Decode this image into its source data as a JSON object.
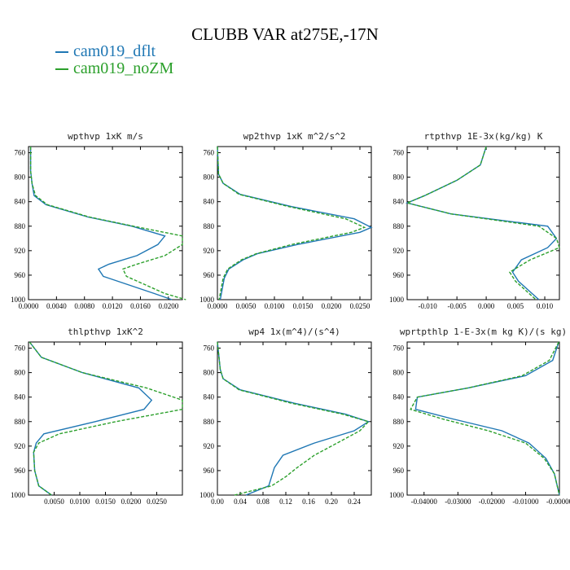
{
  "page": {
    "title": "CLUBB VAR at275E,-17N",
    "legend": [
      {
        "label": "cam019_dflt",
        "color": "#1f77b4"
      },
      {
        "label": "cam019_noZM",
        "color": "#2ca02c"
      }
    ]
  },
  "chart_data": [
    {
      "type": "line",
      "title": "wpthvp  1xK m/s",
      "xlim": [
        0,
        0.022
      ],
      "ylim": [
        1000,
        750
      ],
      "xticks": [
        0,
        0.004,
        0.008,
        0.012,
        0.016,
        0.02
      ],
      "xtick_labels": [
        "0.0000",
        "0.0040",
        "0.0080",
        "0.0120",
        "0.0160",
        "0.0200"
      ],
      "yticks": [
        760,
        800,
        840,
        880,
        920,
        960,
        1000
      ],
      "ytick_labels": [
        "760",
        "800",
        "840",
        "880",
        "920",
        "960",
        "1000"
      ],
      "series": [
        {
          "name": "cam019_dflt",
          "x": [
            0.0003,
            0.0003,
            0.0005,
            0.0008,
            0.0025,
            0.0085,
            0.0148,
            0.0195,
            0.0185,
            0.0155,
            0.0115,
            0.01,
            0.0107,
            0.018,
            0.0205
          ],
          "y": [
            750,
            790,
            810,
            830,
            845,
            865,
            880,
            896,
            910,
            928,
            942,
            950,
            962,
            990,
            1000
          ]
        },
        {
          "name": "cam019_noZM",
          "x": [
            0.0003,
            0.0003,
            0.0005,
            0.001,
            0.0027,
            0.0087,
            0.015,
            0.022,
            0.022,
            0.0195,
            0.0155,
            0.0135,
            0.014,
            0.0195,
            0.0225
          ],
          "y": [
            750,
            790,
            810,
            830,
            845,
            865,
            880,
            896,
            910,
            928,
            942,
            950,
            962,
            990,
            1000
          ]
        }
      ]
    },
    {
      "type": "line",
      "title": "wp2thvp  1xK m^2/s^2",
      "xlim": [
        0,
        0.027
      ],
      "ylim": [
        1000,
        750
      ],
      "xticks": [
        0,
        0.005,
        0.01,
        0.015,
        0.02,
        0.025
      ],
      "xtick_labels": [
        "0.0000",
        "0.0050",
        "0.0100",
        "0.0150",
        "0.0200",
        "0.0250"
      ],
      "yticks": [
        760,
        800,
        840,
        880,
        920,
        960,
        1000
      ],
      "ytick_labels": [
        "760",
        "800",
        "840",
        "880",
        "920",
        "960",
        "1000"
      ],
      "series": [
        {
          "name": "cam019_dflt",
          "x": [
            0.0,
            0.0002,
            0.001,
            0.004,
            0.013,
            0.024,
            0.027,
            0.025,
            0.014,
            0.007,
            0.0045,
            0.002,
            0.0012,
            0.0008,
            0.0005
          ],
          "y": [
            750,
            795,
            810,
            828,
            848,
            868,
            882,
            890,
            910,
            925,
            935,
            950,
            965,
            985,
            1000
          ]
        },
        {
          "name": "cam019_noZM",
          "x": [
            0.0,
            0.0002,
            0.001,
            0.0038,
            0.0125,
            0.0225,
            0.0258,
            0.0235,
            0.013,
            0.0068,
            0.0042,
            0.0018,
            0.001,
            0.0006,
            0.0003
          ],
          "y": [
            750,
            795,
            810,
            828,
            848,
            868,
            882,
            890,
            910,
            925,
            935,
            950,
            965,
            985,
            1000
          ]
        }
      ]
    },
    {
      "type": "line",
      "title": "rtpthvp  1E-3x(kg/kg) K",
      "xlim": [
        -0.0135,
        0.0125
      ],
      "ylim": [
        1000,
        750
      ],
      "xticks": [
        -0.01,
        -0.005,
        0.0,
        0.005,
        0.01
      ],
      "xtick_labels": [
        "-0.010",
        "-0.005",
        "0.000",
        "0.005",
        "0.010"
      ],
      "yticks": [
        760,
        800,
        840,
        880,
        920,
        960,
        1000
      ],
      "ytick_labels": [
        "760",
        "800",
        "840",
        "880",
        "920",
        "960",
        "1000"
      ],
      "series": [
        {
          "name": "cam019_dflt",
          "x": [
            0.0,
            -0.001,
            -0.005,
            -0.0105,
            -0.0135,
            -0.006,
            0.0105,
            0.012,
            0.0105,
            0.006,
            0.0045,
            0.0055,
            0.009
          ],
          "y": [
            750,
            780,
            805,
            830,
            842,
            860,
            880,
            900,
            915,
            935,
            955,
            970,
            1000
          ]
        },
        {
          "name": "cam019_noZM",
          "x": [
            0.0,
            -0.001,
            -0.005,
            -0.0105,
            -0.0135,
            -0.006,
            0.009,
            0.012,
            0.0125,
            0.0075,
            0.004,
            0.005,
            0.0085
          ],
          "y": [
            750,
            780,
            805,
            830,
            842,
            860,
            880,
            900,
            915,
            935,
            955,
            970,
            1000
          ]
        }
      ]
    },
    {
      "type": "line",
      "title": "thlpthvp  1xK^2",
      "xlim": [
        0,
        0.03
      ],
      "ylim": [
        1000,
        750
      ],
      "xticks": [
        0.005,
        0.01,
        0.015,
        0.02,
        0.025
      ],
      "xtick_labels": [
        "0.0050",
        "0.0100",
        "0.0150",
        "0.0200",
        "0.0250"
      ],
      "yticks": [
        760,
        800,
        840,
        880,
        920,
        960,
        1000
      ],
      "ytick_labels": [
        "760",
        "800",
        "840",
        "880",
        "920",
        "960",
        "1000"
      ],
      "series": [
        {
          "name": "cam019_dflt",
          "x": [
            0.0002,
            0.0025,
            0.0105,
            0.0215,
            0.024,
            0.0225,
            0.013,
            0.003,
            0.0015,
            0.001,
            0.0012,
            0.002,
            0.0045
          ],
          "y": [
            750,
            775,
            800,
            825,
            845,
            860,
            880,
            900,
            915,
            930,
            960,
            985,
            1000
          ]
        },
        {
          "name": "cam019_noZM",
          "x": [
            0.0002,
            0.0025,
            0.0105,
            0.023,
            0.03,
            0.03,
            0.017,
            0.006,
            0.002,
            0.001,
            0.0012,
            0.002,
            0.0045
          ],
          "y": [
            750,
            775,
            800,
            825,
            845,
            860,
            880,
            900,
            915,
            930,
            960,
            985,
            1000
          ]
        }
      ]
    },
    {
      "type": "line",
      "title": "wp4  1x(m^4)/(s^4)",
      "xlim": [
        0,
        0.27
      ],
      "ylim": [
        1000,
        750
      ],
      "xticks": [
        0,
        0.04,
        0.08,
        0.12,
        0.16,
        0.2,
        0.24
      ],
      "xtick_labels": [
        "0.00",
        "0.04",
        "0.08",
        "0.12",
        "0.16",
        "0.20",
        "0.24"
      ],
      "yticks": [
        760,
        800,
        840,
        880,
        920,
        960,
        1000
      ],
      "ytick_labels": [
        "760",
        "800",
        "840",
        "880",
        "920",
        "960",
        "1000"
      ],
      "series": [
        {
          "name": "cam019_dflt",
          "x": [
            0.0,
            0.005,
            0.01,
            0.04,
            0.135,
            0.225,
            0.265,
            0.24,
            0.17,
            0.115,
            0.1,
            0.095,
            0.09,
            0.05
          ],
          "y": [
            750,
            795,
            810,
            828,
            850,
            868,
            880,
            895,
            915,
            935,
            955,
            970,
            985,
            1000
          ]
        },
        {
          "name": "cam019_noZM",
          "x": [
            0.0,
            0.005,
            0.01,
            0.038,
            0.13,
            0.22,
            0.265,
            0.25,
            0.21,
            0.17,
            0.14,
            0.12,
            0.095,
            0.03
          ],
          "y": [
            750,
            795,
            810,
            828,
            850,
            868,
            880,
            895,
            915,
            935,
            955,
            970,
            985,
            1000
          ]
        }
      ]
    },
    {
      "type": "line",
      "title": "wprtpthlp  1-E-3x(m kg K)/(s kg)",
      "xlim": [
        -0.045,
        0.0
      ],
      "ylim": [
        1000,
        750
      ],
      "xticks": [
        -0.04,
        -0.03,
        -0.02,
        -0.01,
        0.0
      ],
      "xtick_labels": [
        "-0.04000",
        "-0.03000",
        "-0.02000",
        "-0.01000",
        "-0.00000"
      ],
      "yticks": [
        760,
        800,
        840,
        880,
        920,
        960,
        1000
      ],
      "ytick_labels": [
        "760",
        "800",
        "840",
        "880",
        "920",
        "960",
        "1000"
      ],
      "series": [
        {
          "name": "cam019_dflt",
          "x": [
            -0.0002,
            -0.002,
            -0.01,
            -0.027,
            -0.042,
            -0.0425,
            -0.032,
            -0.017,
            -0.009,
            -0.004,
            -0.0015,
            0.0
          ],
          "y": [
            750,
            780,
            805,
            825,
            840,
            860,
            875,
            895,
            915,
            940,
            965,
            1000
          ]
        },
        {
          "name": "cam019_noZM",
          "x": [
            -0.0002,
            -0.003,
            -0.011,
            -0.027,
            -0.042,
            -0.044,
            -0.035,
            -0.021,
            -0.01,
            -0.0045,
            -0.0015,
            0.0
          ],
          "y": [
            750,
            780,
            805,
            825,
            840,
            860,
            875,
            895,
            915,
            940,
            965,
            1000
          ]
        }
      ]
    }
  ]
}
